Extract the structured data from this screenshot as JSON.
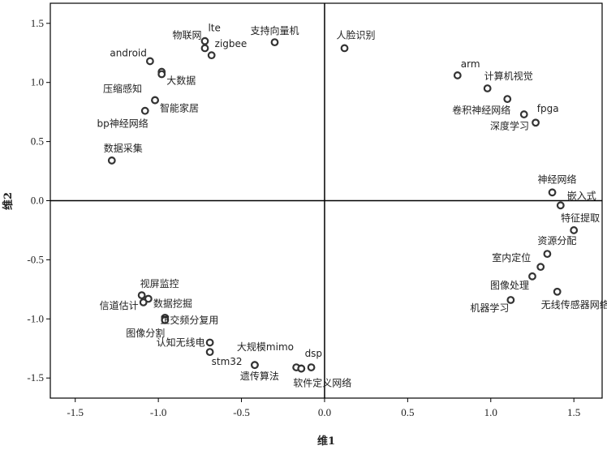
{
  "chart_data": {
    "type": "scatter",
    "title": "",
    "xlabel": "维1",
    "ylabel": "维2",
    "xlim": [
      -1.65,
      1.67
    ],
    "ylim": [
      -1.67,
      1.67
    ],
    "xticks": [
      -1.5,
      -1.0,
      -0.5,
      0.0,
      0.5,
      1.0,
      1.5
    ],
    "xtick_labels": [
      "-1.5",
      "-1.0",
      "-0.5",
      "0.0",
      "0.5",
      "1.0",
      "1.5"
    ],
    "yticks": [
      -1.5,
      -1.0,
      -0.5,
      0.0,
      0.5,
      1.0,
      1.5
    ],
    "ytick_labels": [
      "-1.5",
      "-1.0",
      "-0.5",
      "0.0",
      "0.5",
      "1.0",
      "1.5"
    ],
    "grid": false,
    "reference_lines": {
      "x": 0,
      "y": 0
    },
    "colors": {
      "marker_edge": "#333333",
      "marker_fill": "#ffffff",
      "axis": "#000000"
    },
    "points": [
      {
        "label": "lte",
        "x": -0.72,
        "y": 1.35,
        "anchor": "start",
        "dx": 4,
        "dy": -12
      },
      {
        "label": "物联网",
        "x": -0.72,
        "y": 1.29,
        "anchor": "end",
        "dx": -4,
        "dy": -12
      },
      {
        "label": "zigbee",
        "x": -0.68,
        "y": 1.23,
        "anchor": "start",
        "dx": 4,
        "dy": -10
      },
      {
        "label": "android",
        "x": -1.05,
        "y": 1.18,
        "anchor": "end",
        "dx": -4,
        "dy": -6
      },
      {
        "label": "支持向量机",
        "x": -0.3,
        "y": 1.34,
        "anchor": "middle",
        "dx": 0,
        "dy": -10
      },
      {
        "label": "",
        "x": -0.98,
        "y": 1.09,
        "anchor": "start",
        "dx": 0,
        "dy": 0
      },
      {
        "label": "大数据",
        "x": -0.98,
        "y": 1.07,
        "anchor": "start",
        "dx": 6,
        "dy": 12
      },
      {
        "label": "压缩感知",
        "x": -1.02,
        "y": 0.85,
        "anchor": "end",
        "dx": -16,
        "dy": -10
      },
      {
        "label": "智能家居",
        "x": -1.02,
        "y": 0.85,
        "anchor": "start",
        "dx": 6,
        "dy": 14
      },
      {
        "label": "bp神经网络",
        "x": -1.08,
        "y": 0.76,
        "anchor": "end",
        "dx": 4,
        "dy": 20
      },
      {
        "label": "数据采集",
        "x": -1.28,
        "y": 0.34,
        "anchor": "start",
        "dx": -10,
        "dy": -11
      },
      {
        "label": "人脸识别",
        "x": 0.12,
        "y": 1.29,
        "anchor": "middle",
        "dx": 14,
        "dy": -12
      },
      {
        "label": "arm",
        "x": 0.8,
        "y": 1.06,
        "anchor": "start",
        "dx": 4,
        "dy": -10
      },
      {
        "label": "计算机视觉",
        "x": 0.98,
        "y": 0.95,
        "anchor": "start",
        "dx": -4,
        "dy": -11
      },
      {
        "label": "卷积神经网络",
        "x": 1.1,
        "y": 0.86,
        "anchor": "end",
        "dx": 4,
        "dy": 18
      },
      {
        "label": "fpga",
        "x": 1.2,
        "y": 0.73,
        "anchor": "start",
        "dx": 16,
        "dy": -3
      },
      {
        "label": "深度学习",
        "x": 1.27,
        "y": 0.66,
        "anchor": "end",
        "dx": -8,
        "dy": 8
      },
      {
        "label": "神经网络",
        "x": 1.37,
        "y": 0.07,
        "anchor": "middle",
        "dx": 6,
        "dy": -12
      },
      {
        "label": "嵌入式",
        "x": 1.42,
        "y": -0.04,
        "anchor": "start",
        "dx": 8,
        "dy": -8
      },
      {
        "label": "特征提取",
        "x": 1.5,
        "y": -0.25,
        "anchor": "end",
        "dx": 32,
        "dy": -11
      },
      {
        "label": "资源分配",
        "x": 1.34,
        "y": -0.45,
        "anchor": "start",
        "dx": -12,
        "dy": -12
      },
      {
        "label": "室内定位",
        "x": 1.3,
        "y": -0.56,
        "anchor": "end",
        "dx": -12,
        "dy": -7
      },
      {
        "label": "图像处理",
        "x": 1.25,
        "y": -0.64,
        "anchor": "end",
        "dx": -4,
        "dy": 15
      },
      {
        "label": "无线传感器网络",
        "x": 1.4,
        "y": -0.77,
        "anchor": "start",
        "dx": -20,
        "dy": 20
      },
      {
        "label": "机器学习",
        "x": 1.12,
        "y": -0.84,
        "anchor": "end",
        "dx": -2,
        "dy": 14
      },
      {
        "label": "视屏监控",
        "x": -1.1,
        "y": -0.8,
        "anchor": "start",
        "dx": -2,
        "dy": -10
      },
      {
        "label": "数据挖掘",
        "x": -1.06,
        "y": -0.83,
        "anchor": "start",
        "dx": 6,
        "dy": 10
      },
      {
        "label": "信道估计",
        "x": -1.09,
        "y": -0.86,
        "anchor": "end",
        "dx": -6,
        "dy": 8
      },
      {
        "label": "",
        "x": -0.96,
        "y": -0.99,
        "anchor": "start",
        "dx": 0,
        "dy": 0
      },
      {
        "label": "正交频分复用",
        "x": -0.96,
        "y": -1.01,
        "anchor": "start",
        "dx": -6,
        "dy": 4
      },
      {
        "label": "图像分割",
        "x": -0.96,
        "y": -1.01,
        "anchor": "end",
        "dx": 0,
        "dy": 20
      },
      {
        "label": "认知无线电",
        "x": -0.69,
        "y": -1.2,
        "anchor": "end",
        "dx": -6,
        "dy": 4
      },
      {
        "label": "stm32",
        "x": -0.69,
        "y": -1.28,
        "anchor": "start",
        "dx": 2,
        "dy": 16
      },
      {
        "label": "大规模mimo",
        "x": -0.42,
        "y": -1.39,
        "anchor": "start",
        "dx": -22,
        "dy": -18
      },
      {
        "label": "遗传算法",
        "x": -0.42,
        "y": -1.39,
        "anchor": "middle",
        "dx": 6,
        "dy": 18
      },
      {
        "label": "",
        "x": -0.17,
        "y": -1.41,
        "anchor": "start",
        "dx": 0,
        "dy": 0
      },
      {
        "label": "",
        "x": -0.14,
        "y": -1.42,
        "anchor": "start",
        "dx": 0,
        "dy": 0
      },
      {
        "label": "软件定义网络",
        "x": -0.14,
        "y": -1.42,
        "anchor": "start",
        "dx": -10,
        "dy": 22
      },
      {
        "label": "dsp",
        "x": -0.08,
        "y": -1.41,
        "anchor": "start",
        "dx": -8,
        "dy": -13
      }
    ]
  }
}
